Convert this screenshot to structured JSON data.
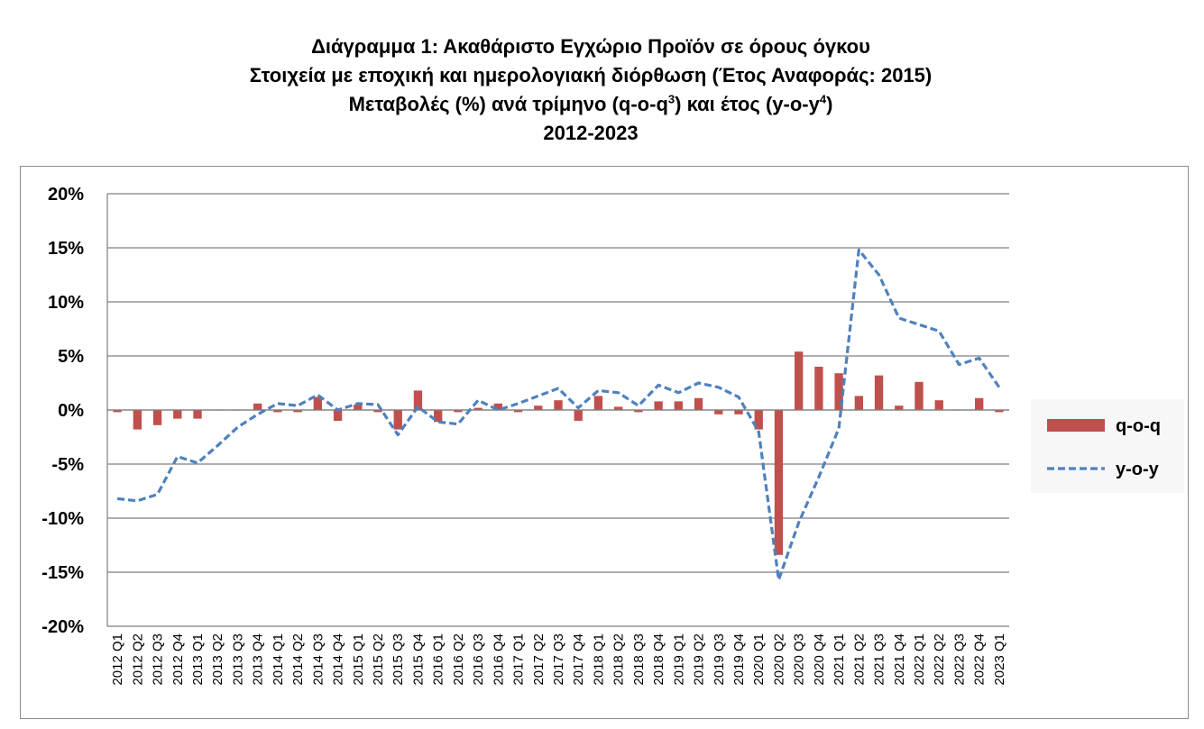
{
  "title": {
    "line1": "Διάγραμμα 1: Ακαθάριστο Εγχώριο Προϊόν σε όρους όγκου",
    "line2": "Στοιχεία με εποχική και ημερολογιακή διόρθωση (Έτος Αναφοράς: 2015)",
    "line3_pre": "Μεταβολές (%) ανά τρίμηνο (q-o-q",
    "line3_sup1": "3",
    "line3_mid": ") και έτος (y-o-y",
    "line3_sup2": "4",
    "line3_post": ")",
    "line4": "2012-2023"
  },
  "chart_data": {
    "type": "bar+line",
    "ylim": [
      -20,
      20
    ],
    "yticks": [
      20,
      15,
      10,
      5,
      0,
      -5,
      -10,
      -15,
      -20
    ],
    "ytick_labels": [
      "20%",
      "15%",
      "10%",
      "5%",
      "0%",
      "-5%",
      "-10%",
      "-15%",
      "-20%"
    ],
    "grid": true,
    "legend_position": "right",
    "categories": [
      "2012 Q1",
      "2012 Q2",
      "2012 Q3",
      "2012 Q4",
      "2013 Q1",
      "2013 Q2",
      "2013 Q3",
      "2013 Q4",
      "2014 Q1",
      "2014 Q2",
      "2014 Q3",
      "2014 Q4",
      "2015 Q1",
      "2015 Q2",
      "2015 Q3",
      "2015 Q4",
      "2016 Q1",
      "2016 Q2",
      "2016 Q3",
      "2016 Q4",
      "2017 Q1",
      "2017 Q2",
      "2017 Q3",
      "2017 Q4",
      "2018 Q1",
      "2018 Q2",
      "2018 Q3",
      "2018 Q4",
      "2019 Q1",
      "2019 Q2",
      "2019 Q3",
      "2019 Q4",
      "2020 Q1",
      "2020 Q2",
      "2020 Q3",
      "2020 Q4",
      "2021 Q1",
      "2021 Q2",
      "2021 Q3",
      "2021 Q4",
      "2022 Q1",
      "2022 Q2",
      "2022 Q3",
      "2022 Q4",
      "2023 Q1"
    ],
    "series": [
      {
        "name": "q-o-q",
        "kind": "bar",
        "color": "#c0504d",
        "values": [
          -0.2,
          -1.8,
          -1.4,
          -0.8,
          -0.8,
          0.0,
          0.0,
          0.6,
          -0.2,
          -0.2,
          1.2,
          -1.0,
          0.5,
          -0.2,
          -1.8,
          1.8,
          -1.1,
          -0.2,
          0.2,
          0.6,
          -0.2,
          0.4,
          0.9,
          -1.0,
          1.3,
          0.3,
          -0.2,
          0.8,
          0.8,
          1.1,
          -0.4,
          -0.4,
          -1.8,
          -13.4,
          5.4,
          4.0,
          3.4,
          1.3,
          3.2,
          0.4,
          2.6,
          0.9,
          0.0,
          1.1,
          -0.2
        ]
      },
      {
        "name": "y-o-y",
        "kind": "line",
        "color": "#4f81bd",
        "values": [
          -8.2,
          -8.4,
          -7.8,
          -4.3,
          -4.9,
          -3.3,
          -1.6,
          -0.4,
          0.6,
          0.4,
          1.4,
          0.0,
          0.6,
          0.5,
          -2.3,
          0.3,
          -1.1,
          -1.3,
          0.9,
          0.0,
          0.6,
          1.3,
          2.0,
          0.2,
          1.8,
          1.6,
          0.4,
          2.3,
          1.6,
          2.5,
          2.1,
          1.2,
          -2.0,
          -15.7,
          -10.4,
          -6.2,
          -1.7,
          14.8,
          12.5,
          8.5,
          7.9,
          7.3,
          4.2,
          4.8,
          2.1
        ]
      }
    ]
  }
}
